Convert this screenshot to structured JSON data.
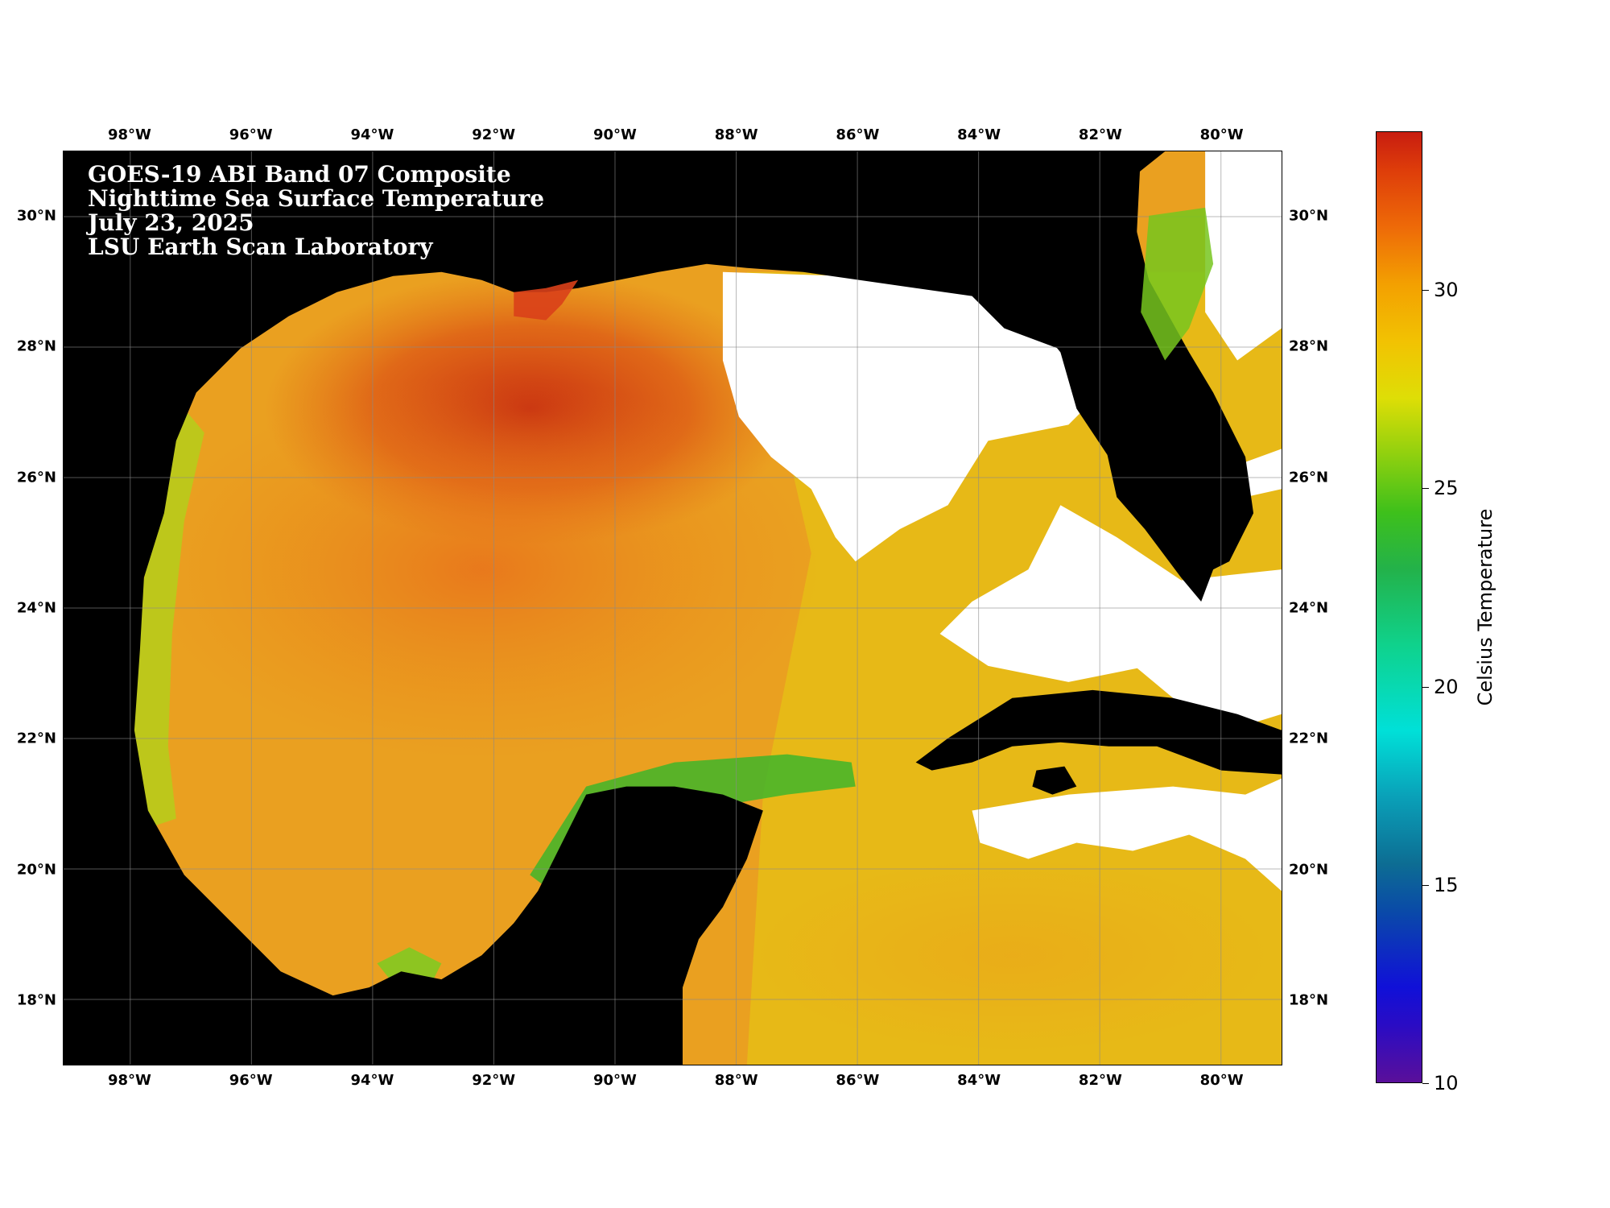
{
  "title_lines": [
    "GOES-19 ABI Band 07 Composite",
    "Nighttime Sea Surface Temperature",
    "July 23, 2025",
    "LSU Earth Scan Laboratory"
  ],
  "map": {
    "lon_range": [
      -99.1,
      -79.0
    ],
    "lat_range": [
      17.0,
      31.0
    ],
    "lon_ticks": [
      -98,
      -96,
      -94,
      -92,
      -90,
      -88,
      -86,
      -84,
      -82,
      -80
    ],
    "lat_ticks": [
      18,
      20,
      22,
      24,
      26,
      28,
      30
    ],
    "lon_labels": [
      "98°W",
      "96°W",
      "94°W",
      "92°W",
      "90°W",
      "88°W",
      "86°W",
      "84°W",
      "82°W",
      "80°W"
    ],
    "lat_labels": [
      "18°N",
      "20°N",
      "22°N",
      "24°N",
      "26°N",
      "28°N",
      "30°N"
    ],
    "land_color": "#000000",
    "cloud_color": "#ffffff",
    "gridline_color": "#8a8a8a"
  },
  "colorbar": {
    "label": "Celsius Temperature",
    "range": [
      10,
      34
    ],
    "ticks": [
      10,
      15,
      20,
      25,
      30
    ],
    "tick_labels": [
      "10",
      "15",
      "20",
      "25",
      "30"
    ]
  }
}
